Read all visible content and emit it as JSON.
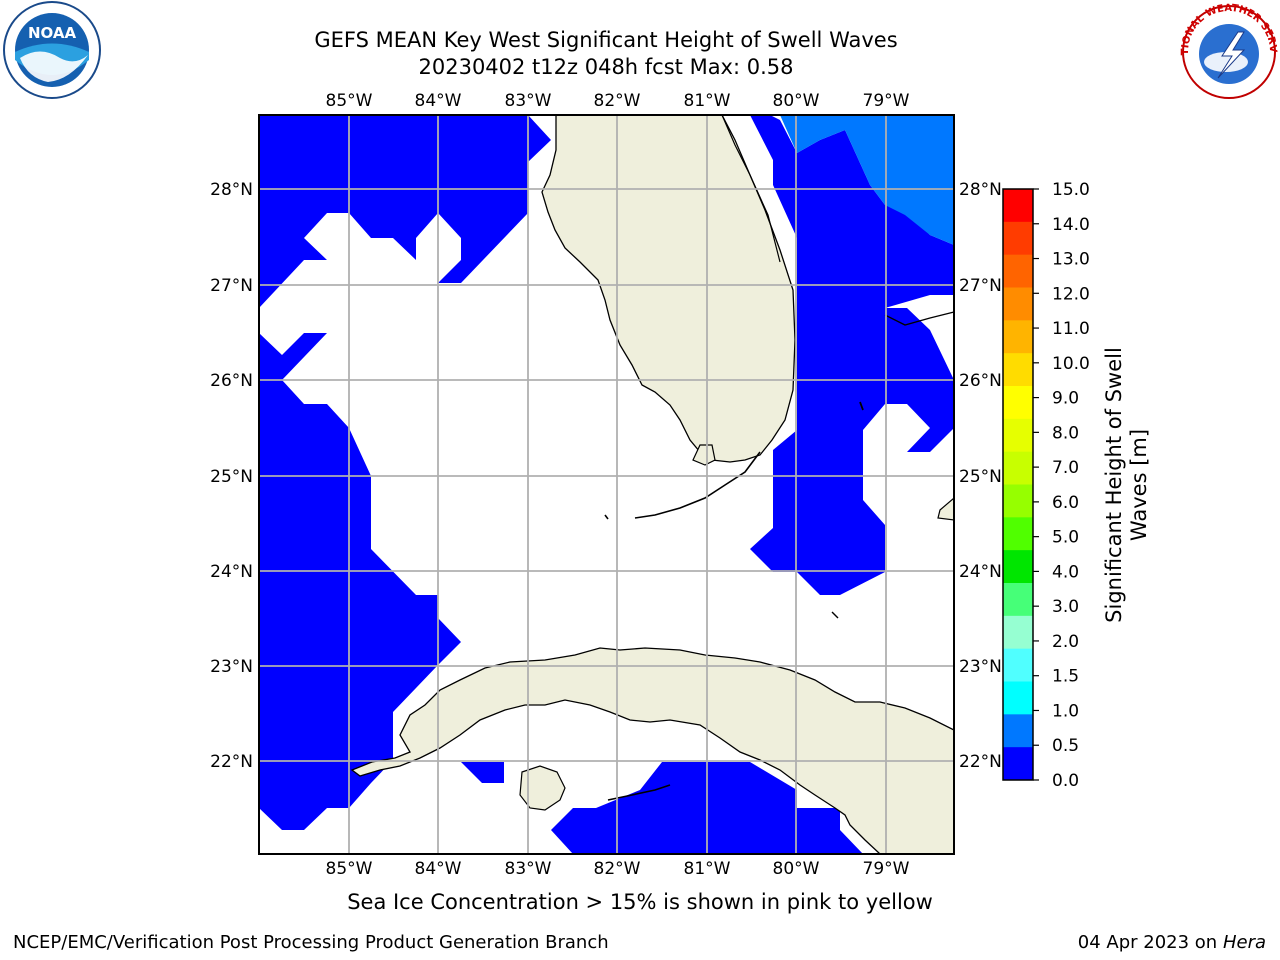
{
  "title": {
    "line1": "GEFS MEAN Key West Significant Height of Swell Waves",
    "line2": "20230402 t12z 048h fcst   Max: 0.58"
  },
  "map": {
    "lon_labels": [
      "85°W",
      "84°W",
      "83°W",
      "82°W",
      "81°W",
      "80°W",
      "79°W"
    ],
    "lat_labels": [
      "28°N",
      "27°N",
      "26°N",
      "25°N",
      "24°N",
      "23°N",
      "22°N"
    ],
    "ocean_color": "#ffffff",
    "land_color": "#efefdc",
    "swell_0_05_color": "#0000ff",
    "swell_05_10_color": "#0078ff"
  },
  "colorbar": {
    "label_line1": "Significant Height of Swell",
    "label_line2": "Waves [m]",
    "ticks": [
      "15.0",
      "14.0",
      "13.0",
      "12.0",
      "11.0",
      "10.0",
      "9.0",
      "8.0",
      "7.0",
      "6.0",
      "5.0",
      "4.0",
      "3.0",
      "2.0",
      "1.5",
      "1.0",
      "0.5",
      "0.0"
    ],
    "colors": [
      "#ff0000",
      "#ff3c00",
      "#ff6400",
      "#ff8c00",
      "#ffb400",
      "#ffdc00",
      "#ffff00",
      "#e6ff00",
      "#c8ff00",
      "#96ff00",
      "#50ff00",
      "#00e600",
      "#46ff78",
      "#96ffd2",
      "#50ffff",
      "#00ffff",
      "#0078ff",
      "#0000ff"
    ]
  },
  "note": "Sea Ice Concentration > 15% is shown in pink to yellow",
  "footer": {
    "left": "NCEP/EMC/Verification Post Processing Product Generation Branch",
    "right_prefix": "04 Apr 2023 on ",
    "right_host": "Hera"
  },
  "logos": {
    "left_text": "NOAA",
    "right_text": "NATIONAL WEATHER SERVICE"
  }
}
